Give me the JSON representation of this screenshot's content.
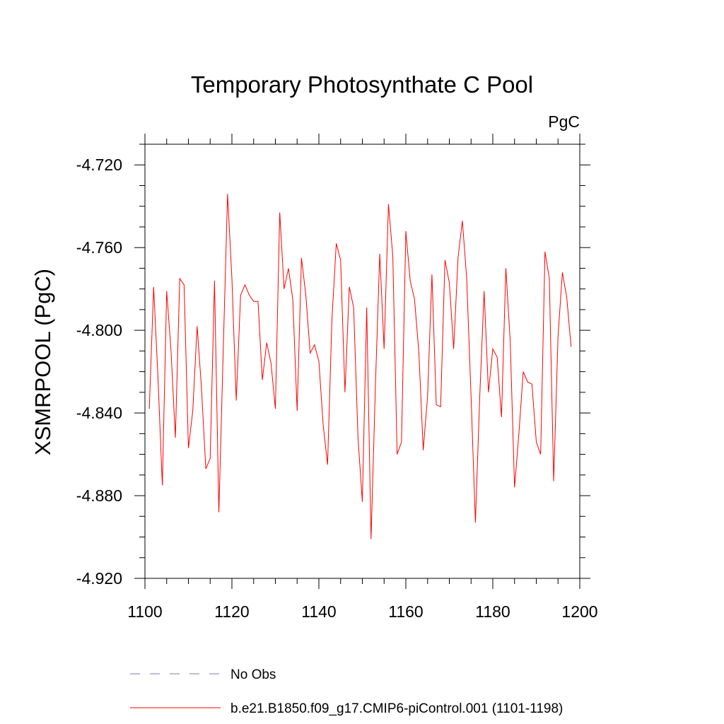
{
  "chart_data": {
    "type": "line",
    "title": "Temporary Photosynthate C Pool",
    "units_label": "PgC",
    "ylabel": "XSMRPOOL  (PgC)",
    "xlabel": "",
    "xlim": [
      1100,
      1200
    ],
    "ylim": [
      -4.92,
      -4.71
    ],
    "x_ticks": [
      1100,
      1120,
      1140,
      1160,
      1180,
      1200
    ],
    "x_tick_labels": [
      "1100",
      "1120",
      "1140",
      "1160",
      "1180",
      "1200"
    ],
    "y_ticks": [
      -4.72,
      -4.76,
      -4.8,
      -4.84,
      -4.88,
      -4.92
    ],
    "y_tick_labels": [
      "-4.720",
      "-4.760",
      "-4.800",
      "-4.840",
      "-4.880",
      "-4.920"
    ],
    "grid": false,
    "legend_position": "bottom",
    "series": [
      {
        "name": "b.e21.B1850.f09_g17.CMIP6-piControl.001 (1101-1198)",
        "color": "#ff0000",
        "style": "solid",
        "x": [
          1101,
          1102,
          1103,
          1104,
          1105,
          1106,
          1107,
          1108,
          1109,
          1110,
          1111,
          1112,
          1113,
          1114,
          1115,
          1116,
          1117,
          1118,
          1119,
          1120,
          1121,
          1122,
          1123,
          1124,
          1125,
          1126,
          1127,
          1128,
          1129,
          1130,
          1131,
          1132,
          1133,
          1134,
          1135,
          1136,
          1137,
          1138,
          1139,
          1140,
          1141,
          1142,
          1143,
          1144,
          1145,
          1146,
          1147,
          1148,
          1149,
          1150,
          1151,
          1152,
          1153,
          1154,
          1155,
          1156,
          1157,
          1158,
          1159,
          1160,
          1161,
          1162,
          1163,
          1164,
          1165,
          1166,
          1167,
          1168,
          1169,
          1170,
          1171,
          1172,
          1173,
          1174,
          1175,
          1176,
          1177,
          1178,
          1179,
          1180,
          1181,
          1182,
          1183,
          1184,
          1185,
          1186,
          1187,
          1188,
          1189,
          1190,
          1191,
          1192,
          1193,
          1194,
          1195,
          1196,
          1197,
          1198
        ],
        "y": [
          -4.838,
          -4.779,
          -4.823,
          -4.875,
          -4.781,
          -4.81,
          -4.852,
          -4.775,
          -4.778,
          -4.857,
          -4.839,
          -4.798,
          -4.828,
          -4.867,
          -4.862,
          -4.776,
          -4.888,
          -4.81,
          -4.734,
          -4.775,
          -4.834,
          -4.783,
          -4.778,
          -4.783,
          -4.786,
          -4.786,
          -4.824,
          -4.806,
          -4.816,
          -4.838,
          -4.743,
          -4.78,
          -4.77,
          -4.785,
          -4.839,
          -4.765,
          -4.783,
          -4.811,
          -4.807,
          -4.815,
          -4.846,
          -4.865,
          -4.795,
          -4.758,
          -4.766,
          -4.83,
          -4.779,
          -4.789,
          -4.852,
          -4.883,
          -4.789,
          -4.901,
          -4.827,
          -4.763,
          -4.809,
          -4.739,
          -4.764,
          -4.86,
          -4.854,
          -4.752,
          -4.776,
          -4.785,
          -4.811,
          -4.858,
          -4.832,
          -4.773,
          -4.836,
          -4.837,
          -4.766,
          -4.777,
          -4.809,
          -4.765,
          -4.747,
          -4.775,
          -4.832,
          -4.893,
          -4.832,
          -4.781,
          -4.83,
          -4.809,
          -4.813,
          -4.842,
          -4.77,
          -4.805,
          -4.876,
          -4.85,
          -4.82,
          -4.825,
          -4.826,
          -4.854,
          -4.86,
          -4.762,
          -4.775,
          -4.873,
          -4.803,
          -4.772,
          -4.784,
          -4.808
        ]
      }
    ],
    "legend": [
      {
        "label": "No Obs",
        "color": "#7b74c4",
        "style": "dashed"
      },
      {
        "label": "b.e21.B1850.f09_g17.CMIP6-piControl.001 (1101-1198)",
        "color": "#ff0000",
        "style": "solid"
      }
    ]
  }
}
